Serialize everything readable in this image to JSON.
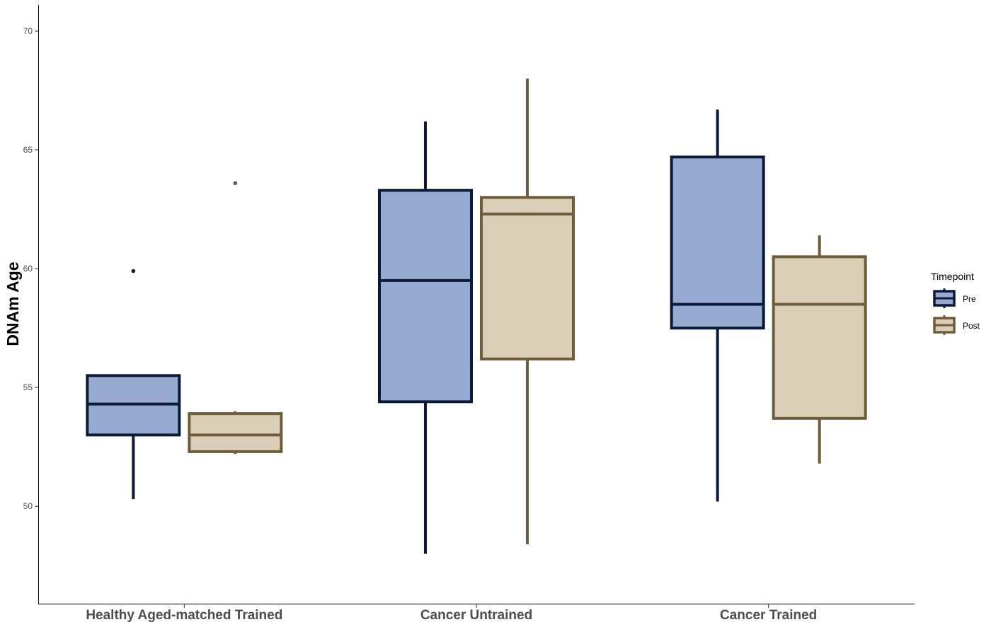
{
  "chart_data": {
    "type": "boxplot",
    "ylabel": "DNAm Age",
    "xlabel": "",
    "ylim": [
      45.9,
      71.1
    ],
    "yticks": [
      50,
      55,
      60,
      65,
      70
    ],
    "categories": [
      "Healthy Aged-matched Trained",
      "Cancer Untrained",
      "Cancer Trained"
    ],
    "legend": {
      "title": "Timepoint",
      "position": "right"
    },
    "grid": false,
    "series": [
      {
        "name": "Pre",
        "fill": "#96AAD2",
        "stroke": "#0C1A38",
        "boxes": [
          {
            "min": 50.3,
            "q1": 53.0,
            "median": 54.3,
            "q3": 55.5,
            "max": 55.5,
            "outliers": [
              59.9
            ]
          },
          {
            "min": 48.0,
            "q1": 54.4,
            "median": 59.5,
            "q3": 63.3,
            "max": 66.2,
            "outliers": []
          },
          {
            "min": 50.2,
            "q1": 57.5,
            "median": 58.5,
            "q3": 64.7,
            "max": 66.7,
            "outliers": []
          }
        ]
      },
      {
        "name": "Post",
        "fill": "#DBCEB7",
        "stroke": "#6F5C3A",
        "boxes": [
          {
            "min": 52.2,
            "q1": 52.3,
            "median": 53.0,
            "q3": 53.9,
            "max": 54.0,
            "outliers": [
              63.6
            ]
          },
          {
            "min": 48.4,
            "q1": 56.2,
            "median": 62.3,
            "q3": 63.0,
            "max": 68.0,
            "outliers": []
          },
          {
            "min": 51.8,
            "q1": 53.7,
            "median": 58.5,
            "q3": 60.5,
            "max": 61.4,
            "outliers": []
          }
        ]
      }
    ]
  }
}
